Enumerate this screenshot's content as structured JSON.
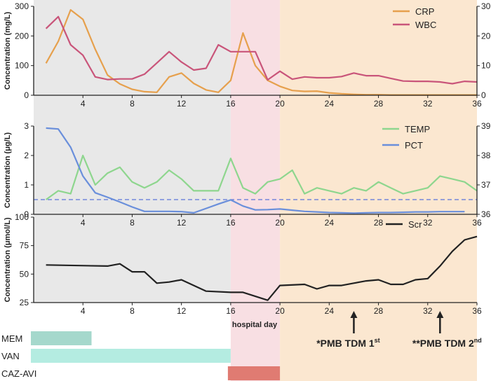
{
  "chart_data": [
    {
      "type": "line",
      "panel": "top",
      "ylabel": "Concentration (mg/L)",
      "ylim": [
        0,
        300
      ],
      "yticks": [
        "0",
        "100",
        "200",
        "300"
      ],
      "y2lim": [
        0,
        30
      ],
      "y2ticks": [
        "0",
        "10",
        "20",
        "30"
      ],
      "legend_position": "top-right",
      "series": [
        {
          "name": "CRP",
          "axis": "left",
          "color": "#e6a04d",
          "x": [
            1,
            2,
            3,
            4,
            5,
            6,
            7,
            8,
            9,
            10,
            11,
            12,
            13,
            14,
            15,
            16,
            17,
            18,
            19,
            20,
            21,
            22,
            23,
            24,
            25,
            26,
            27,
            28,
            29,
            30,
            31,
            32,
            33,
            34,
            35,
            36
          ],
          "y": [
            108,
            182,
            288,
            256,
            155,
            68,
            38,
            20,
            12,
            10,
            62,
            75,
            40,
            18,
            10,
            50,
            210,
            100,
            50,
            30,
            16,
            13,
            14,
            8,
            5,
            3,
            2,
            2,
            1,
            1,
            1,
            1,
            1,
            1,
            1,
            1
          ]
        },
        {
          "name": "WBC",
          "axis": "right",
          "color": "#c9557a",
          "x": [
            1,
            2,
            3,
            4,
            5,
            6,
            7,
            8,
            9,
            10,
            11,
            12,
            13,
            14,
            15,
            16,
            17,
            18,
            19,
            20,
            21,
            22,
            23,
            24,
            25,
            26,
            27,
            28,
            29,
            30,
            31,
            32,
            33,
            34,
            35,
            36
          ],
          "y": [
            22.5,
            26.5,
            17,
            13.5,
            6.2,
            5.3,
            5.5,
            5.5,
            7.1,
            10.9,
            14.7,
            11.2,
            8.5,
            9.1,
            17,
            14.7,
            14.7,
            14.7,
            5.2,
            8.1,
            5.4,
            6.2,
            5.9,
            5.9,
            6.3,
            7.5,
            6.6,
            6.6,
            5.7,
            4.8,
            4.7,
            4.7,
            4.5,
            3.9,
            4.7,
            4.5
          ]
        }
      ]
    },
    {
      "type": "line",
      "panel": "middle",
      "ylabel": "Concentration (μg/L)",
      "ylim": [
        0,
        3
      ],
      "yticks": [
        "0",
        "1",
        "2",
        "3"
      ],
      "y2lim": [
        36,
        39
      ],
      "y2ticks": [
        "36",
        "37",
        "38",
        "39"
      ],
      "reference_line": 0.5,
      "legend_position": "top-right",
      "series": [
        {
          "name": "TEMP",
          "axis": "right",
          "color": "#8ed68e",
          "x": [
            1,
            2,
            3,
            4,
            5,
            6,
            7,
            8,
            9,
            10,
            11,
            12,
            13,
            14,
            15,
            16,
            17,
            18,
            19,
            20,
            21,
            22,
            23,
            24,
            25,
            26,
            27,
            28,
            29,
            30,
            31,
            32,
            33,
            34,
            35,
            36
          ],
          "y": [
            36.5,
            36.8,
            36.7,
            38,
            37,
            37.4,
            37.6,
            37.1,
            36.9,
            37.1,
            37.5,
            37.2,
            36.8,
            36.8,
            36.8,
            37.9,
            36.9,
            36.7,
            37.1,
            37.2,
            37.5,
            36.7,
            36.9,
            36.8,
            36.7,
            36.9,
            36.8,
            37.1,
            36.9,
            36.7,
            36.8,
            36.9,
            37.3,
            37.2,
            37.1,
            36.8
          ]
        },
        {
          "name": "PCT",
          "axis": "left",
          "color": "#6a8fdb",
          "x": [
            1,
            2,
            3,
            4,
            5,
            6,
            7,
            8,
            9,
            10,
            11,
            12,
            13,
            14,
            15,
            16,
            17,
            18,
            19,
            20,
            21,
            22,
            23,
            24,
            25,
            26,
            27,
            28,
            29,
            30,
            31,
            32,
            33,
            34,
            35
          ],
          "y": [
            2.93,
            2.9,
            2.28,
            1.3,
            0.73,
            0.58,
            0.42,
            0.25,
            0.1,
            0.1,
            0.1,
            0.09,
            0.05,
            0.2,
            0.35,
            0.49,
            0.28,
            0.15,
            0.16,
            0.18,
            0.14,
            0.1,
            0.08,
            0.06,
            0.05,
            0.04,
            0.05,
            0.06,
            0.06,
            0.07,
            0.08,
            0.08,
            0.09,
            0.09,
            0.09
          ]
        }
      ]
    },
    {
      "type": "line",
      "panel": "bottom",
      "ylabel": "Concentration (μmol/L)",
      "ylim": [
        25,
        100
      ],
      "yticks": [
        "25",
        "50",
        "75",
        "100"
      ],
      "legend_position": "top-right",
      "series": [
        {
          "name": "Scr",
          "axis": "left",
          "color": "#222222",
          "x": [
            1,
            6,
            7,
            8,
            9,
            10,
            11,
            12,
            14,
            16,
            17,
            19,
            20,
            22,
            23,
            24,
            25,
            26,
            27,
            28,
            29,
            30,
            31,
            32,
            33,
            34,
            35,
            36
          ],
          "y": [
            58,
            57,
            59,
            52,
            52,
            42,
            43,
            45,
            35,
            34,
            34,
            27,
            40,
            41,
            37,
            40,
            40,
            42,
            44,
            45,
            41,
            41,
            45,
            46,
            57,
            70,
            80,
            83
          ]
        }
      ]
    }
  ],
  "xaxis": {
    "xlim": [
      0,
      36
    ],
    "ticks": [
      "4",
      "8",
      "12",
      "16",
      "20",
      "24",
      "28",
      "32",
      "36"
    ],
    "label": "hospital day"
  },
  "phases": [
    {
      "from": 0,
      "to": 16,
      "color": "#e8e8e8"
    },
    {
      "from": 16,
      "to": 20,
      "color": "#f8dfe3"
    },
    {
      "from": 20,
      "to": 36,
      "color": "#fbe7d0"
    }
  ],
  "drugs": [
    {
      "name": "MEM",
      "start": 0,
      "end": 4.7,
      "color": "#a5d8cc"
    },
    {
      "name": "VAN",
      "start": 0,
      "end": 16,
      "color": "#b4ece1"
    },
    {
      "name": "CAZ-AVI",
      "start": 16,
      "end": 20,
      "color": "#e07b72"
    }
  ],
  "annotations": [
    {
      "day": 26,
      "text": "*PMB TDM 1",
      "sup": "st"
    },
    {
      "day": 33,
      "text": "**PMB TDM 2",
      "sup": "nd"
    }
  ]
}
